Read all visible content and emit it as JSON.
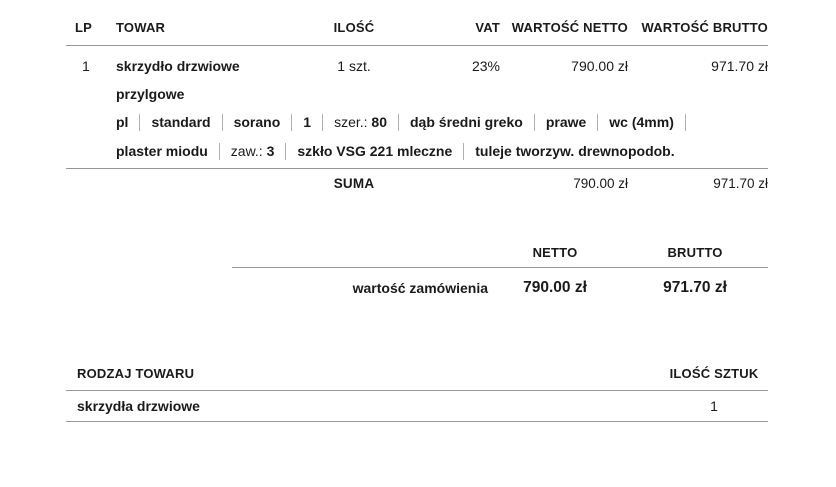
{
  "order_table": {
    "headers": {
      "lp": "LP",
      "towar": "TOWAR",
      "ilosc": "ILOŚĆ",
      "vat": "VAT",
      "netto": "WARTOŚĆ NETTO",
      "brutto": "WARTOŚĆ BRUTTO"
    },
    "rows": [
      {
        "lp": "1",
        "name": "skrzydło drzwiowe przylgowe",
        "qty": "1 szt.",
        "vat": "23%",
        "netto": "790.00 zł",
        "brutto": "971.70 zł",
        "attributes": [
          {
            "label": "",
            "value": "pl"
          },
          {
            "label": "",
            "value": "standard"
          },
          {
            "label": "",
            "value": "sorano"
          },
          {
            "label": "",
            "value": "1"
          },
          {
            "label": "szer.:",
            "value": "80"
          },
          {
            "label": "",
            "value": "dąb średni greko"
          },
          {
            "label": "",
            "value": "prawe"
          },
          {
            "label": "",
            "value": "wc (4mm)"
          },
          {
            "label": "",
            "value": "plaster miodu"
          },
          {
            "label": "zaw.:",
            "value": "3"
          },
          {
            "label": "",
            "value": "szkło VSG 221 mleczne"
          },
          {
            "label": "",
            "value": "tuleje tworzyw. drewnopodob."
          }
        ]
      }
    ],
    "suma": {
      "label": "SUMA",
      "netto": "790.00 zł",
      "brutto": "971.70 zł"
    }
  },
  "summary": {
    "netto_header": "NETTO",
    "brutto_header": "BRUTTO",
    "row_label": "wartość zamówienia",
    "netto_value": "790.00 zł",
    "brutto_value": "971.70 zł"
  },
  "type_table": {
    "header_type": "RODZAJ TOWARU",
    "header_qty": "ILOŚĆ SZTUK",
    "rows": [
      {
        "type": "skrzydła drzwiowe",
        "qty": "1"
      }
    ]
  },
  "colors": {
    "text": "#1a1a1a",
    "rule": "#979797",
    "separator": "#b0b0b0",
    "background": "#ffffff"
  }
}
